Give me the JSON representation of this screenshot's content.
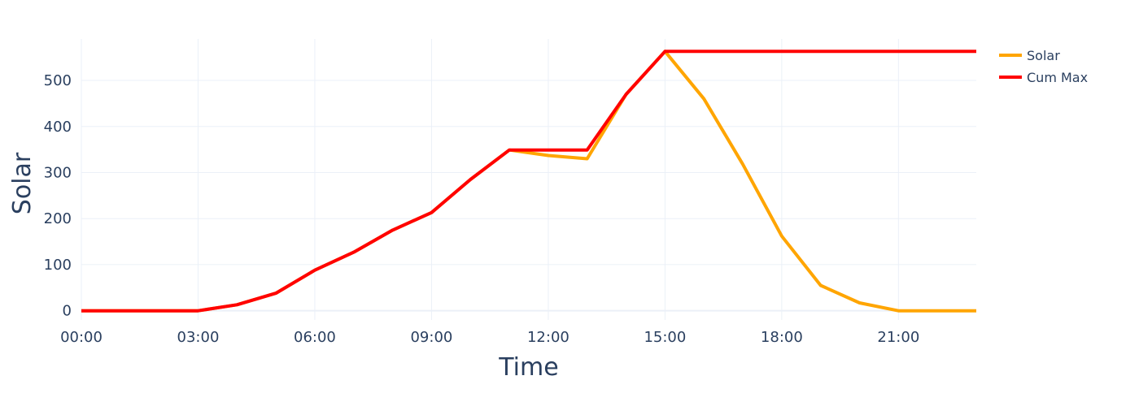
{
  "chart_data": {
    "type": "line",
    "xlabel": "Time",
    "ylabel": "Solar",
    "x": [
      "00:00",
      "01:00",
      "02:00",
      "03:00",
      "04:00",
      "05:00",
      "06:00",
      "07:00",
      "08:00",
      "09:00",
      "10:00",
      "11:00",
      "12:00",
      "13:00",
      "14:00",
      "15:00",
      "16:00",
      "17:00",
      "18:00",
      "19:00",
      "20:00",
      "21:00",
      "22:00",
      "23:00"
    ],
    "x_ticks": [
      "00:00",
      "03:00",
      "06:00",
      "09:00",
      "12:00",
      "15:00",
      "18:00",
      "21:00"
    ],
    "y_ticks": [
      0,
      100,
      200,
      300,
      400,
      500
    ],
    "xlim": [
      "00:00",
      "23:00"
    ],
    "ylim": [
      -20,
      590
    ],
    "grid": true,
    "legend_position": "top-right",
    "series": [
      {
        "name": "Solar",
        "color": "#FFA500",
        "values": [
          0,
          0,
          0,
          0,
          13,
          38,
          88,
          127,
          175,
          213,
          285,
          349,
          337,
          330,
          470,
          563,
          460,
          318,
          162,
          55,
          17,
          0,
          0,
          0
        ]
      },
      {
        "name": "Cum Max",
        "color": "#FF0000",
        "values": [
          0,
          0,
          0,
          0,
          13,
          38,
          88,
          127,
          175,
          213,
          285,
          349,
          349,
          349,
          470,
          563,
          563,
          563,
          563,
          563,
          563,
          563,
          563,
          563
        ]
      }
    ]
  }
}
